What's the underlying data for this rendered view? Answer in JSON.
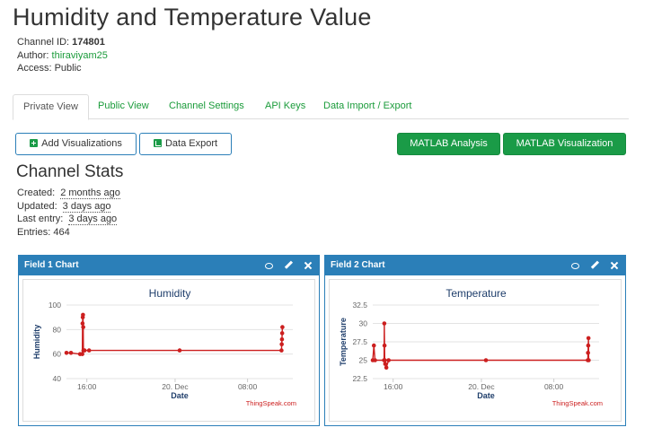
{
  "page": {
    "title": "Humidity and Temperature Value"
  },
  "channel": {
    "id_label": "Channel ID:",
    "id_value": "174801",
    "author_label": "Author:",
    "author_value": "thiraviyam25",
    "access_label": "Access:",
    "access_value": "Public"
  },
  "tabs": [
    {
      "label": "Private View",
      "active": true
    },
    {
      "label": "Public View",
      "active": false
    },
    {
      "label": "Channel Settings",
      "active": false
    },
    {
      "label": "API Keys",
      "active": false
    },
    {
      "label": "Data Import / Export",
      "active": false
    }
  ],
  "buttons": {
    "add_visualizations": "Add Visualizations",
    "data_export": "Data Export",
    "matlab_analysis": "MATLAB Analysis",
    "matlab_visualization": "MATLAB Visualization"
  },
  "stats": {
    "title": "Channel Stats",
    "created_label": "Created:",
    "created_value": "2 months ago",
    "updated_label": "Updated:",
    "updated_value": "3 days ago",
    "last_entry_label": "Last entry:",
    "last_entry_value": "3 days ago",
    "entries_label": "Entries:",
    "entries_value": "464"
  },
  "colors": {
    "accent_blue": "#2b7fb8",
    "green": "#1a9b47",
    "series_red": "#cc1f1f"
  },
  "icons": {
    "comment": "comment-icon",
    "edit": "pencil-icon",
    "close": "close-icon"
  },
  "chart_data": [
    {
      "panel_title": "Field 1 Chart",
      "type": "line",
      "title": "Humidity",
      "xlabel": "Date",
      "ylabel": "Humidity",
      "credit": "ThingSpeak.com",
      "yticks": [
        "40",
        "60",
        "80",
        "100"
      ],
      "xticks": [
        "16:00",
        "20. Dec",
        "08:00"
      ],
      "ylim": [
        40,
        100
      ],
      "grid": true,
      "series": [
        {
          "x": [
            0.0,
            0.02,
            0.06,
            0.07,
            0.071,
            0.072,
            0.073,
            0.074,
            0.075,
            0.08,
            0.1,
            0.5,
            0.95,
            0.951,
            0.952,
            0.953,
            0.954
          ],
          "values": [
            61,
            61,
            60,
            60,
            85,
            90,
            92,
            82,
            63,
            63,
            63,
            63,
            63,
            68,
            72,
            77,
            82
          ]
        }
      ]
    },
    {
      "panel_title": "Field 2 Chart",
      "type": "line",
      "title": "Temperature",
      "xlabel": "Date",
      "ylabel": "Temperature",
      "credit": "ThingSpeak.com",
      "yticks": [
        "22.5",
        "25",
        "27.5",
        "30",
        "32.5"
      ],
      "xticks": [
        "16:00",
        "20. Dec",
        "08:00"
      ],
      "ylim": [
        22.5,
        32.5
      ],
      "grid": true,
      "series": [
        {
          "x": [
            0.0,
            0.005,
            0.01,
            0.05,
            0.051,
            0.052,
            0.053,
            0.055,
            0.06,
            0.07,
            0.5,
            0.95,
            0.951,
            0.952,
            0.953,
            0.954
          ],
          "values": [
            25,
            27,
            25,
            25,
            30,
            27,
            25,
            24.5,
            24,
            25,
            25,
            25,
            26,
            27,
            28,
            25
          ]
        }
      ]
    }
  ]
}
